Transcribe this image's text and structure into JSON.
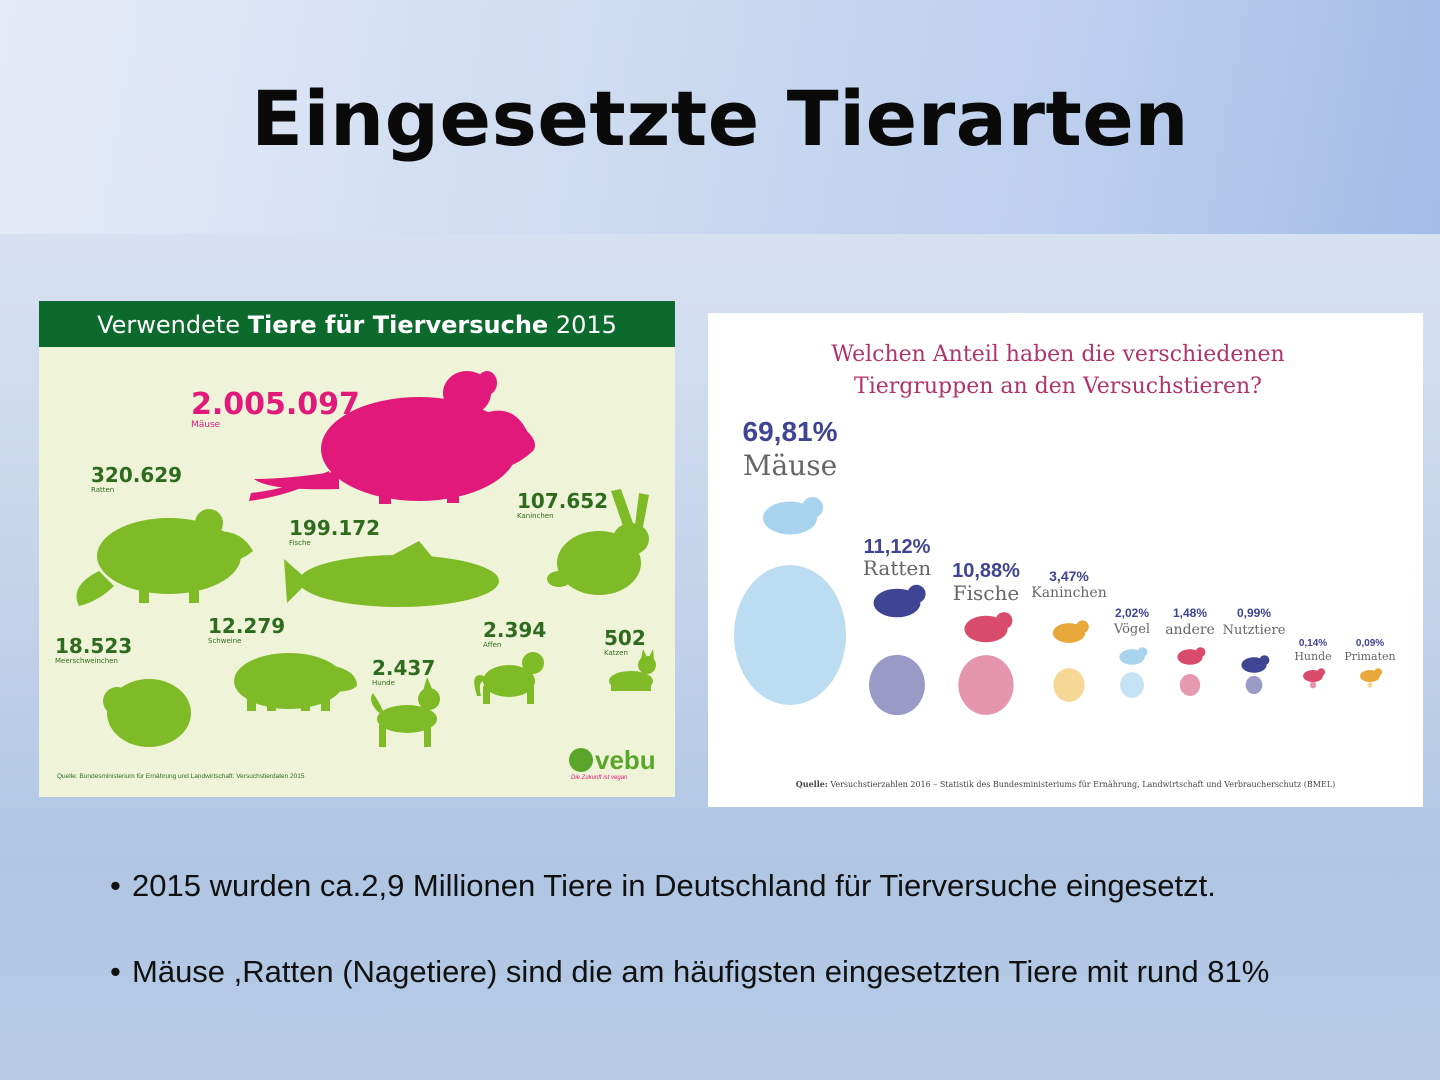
{
  "slide": {
    "title": "Eingesetzte Tierarten"
  },
  "infographic": {
    "header_prefix": "Verwendete ",
    "header_bold": "Tiere für Tierversuche",
    "header_suffix": " 2015",
    "stats": [
      {
        "key": "mice",
        "value": "2.005.097",
        "label": "Mäuse"
      },
      {
        "key": "rats",
        "value": "320.629",
        "label": "Ratten"
      },
      {
        "key": "fish",
        "value": "199.172",
        "label": "Fische"
      },
      {
        "key": "rabbits",
        "value": "107.652",
        "label": "Kaninchen"
      },
      {
        "key": "guinea_pigs",
        "value": "18.523",
        "label": "Meerschweinchen"
      },
      {
        "key": "pigs",
        "value": "12.279",
        "label": "Schweine"
      },
      {
        "key": "monkeys",
        "value": "2.394",
        "label": "Affen"
      },
      {
        "key": "dogs",
        "value": "2.437",
        "label": "Hunde"
      },
      {
        "key": "cats",
        "value": "502",
        "label": "Katzen"
      }
    ],
    "source": "Quelle: Bundesministerium für Ernährung und Landwirtschaft: Versuchstierdaten 2015",
    "brand": "vebu",
    "brand_tagline": "Die Zukunft ist vegan",
    "colors": {
      "green": "#7fba27",
      "pink": "#e0197a",
      "header": "#0b6a2c"
    }
  },
  "chart_data": {
    "type": "bubble",
    "title_line1": "Welchen Anteil haben die verschiedenen",
    "title_line2": "Tiergruppen an den Versuchstieren?",
    "categories": [
      "Mäuse",
      "Ratten",
      "Fische",
      "Kaninchen",
      "Vögel",
      "andere",
      "Nutztiere",
      "Hunde",
      "Primaten"
    ],
    "labels": [
      "69,81%",
      "11,12%",
      "10,88%",
      "3,47%",
      "2,02%",
      "1,48%",
      "0,99%",
      "0,14%",
      "0,09%"
    ],
    "values": [
      69.81,
      11.12,
      10.88,
      3.47,
      2.02,
      1.48,
      0.99,
      0.14,
      0.09
    ],
    "colors": [
      "#bcdcf2",
      "#9a9ac6",
      "#e596ac",
      "#f6d896",
      "#c6e2f5",
      "#e69ab0",
      "#9a9ac6",
      "#e596ac",
      "#f6d896"
    ],
    "icon_colors": [
      "#a8d3ef",
      "#3f4592",
      "#d94b6a",
      "#e8a93a",
      "#a8d3ef",
      "#d94b6a",
      "#3f4592",
      "#d94b6a",
      "#e8a93a"
    ],
    "source_bold": "Quelle:",
    "source": " Versuchstierzahlen 2016 – Statistik des Bundesministeriums für Ernährung, Landwirtschaft und Verbraucherschutz (BMEL)"
  },
  "bullets": [
    "2015 wurden ca.2,9 Millionen Tiere in Deutschland für Tierversuche eingesetzt.",
    "Mäuse ,Ratten (Nagetiere) sind die am häufigsten eingesetzten Tiere mit rund 81%"
  ]
}
